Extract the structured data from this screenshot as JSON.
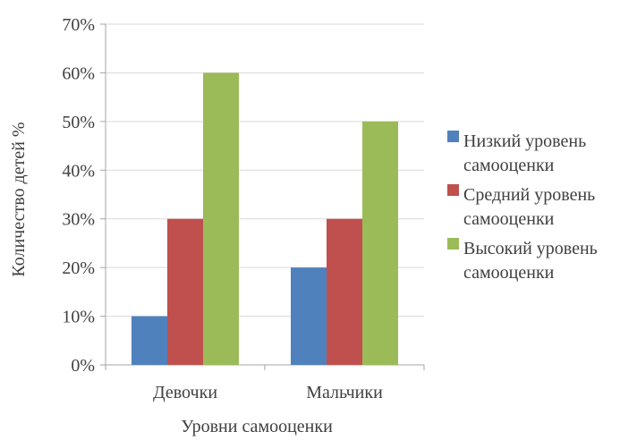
{
  "chart_data": {
    "type": "bar",
    "title": "",
    "xlabel": "Уровни самооценки",
    "ylabel": "Количество детей %",
    "categories": [
      "Девочки",
      "Мальчики"
    ],
    "y_ticks": [
      "0%",
      "10%",
      "20%",
      "30%",
      "40%",
      "50%",
      "60%",
      "70%"
    ],
    "ylim": [
      0,
      70
    ],
    "y_unit": "%",
    "grid": true,
    "legend_position": "right",
    "series": [
      {
        "name": "Низкий уровень самооценки",
        "name_lines": [
          "Низкий уровень",
          "самооценки"
        ],
        "color": "#4F81BD",
        "values": [
          10,
          20
        ]
      },
      {
        "name": "Средний уровень самооценки",
        "name_lines": [
          "Средний уровень",
          "самооценки"
        ],
        "color": "#C0504D",
        "values": [
          30,
          30
        ]
      },
      {
        "name": "Высокий уровень самооценки",
        "name_lines": [
          "Высокий уровень",
          "самооценки"
        ],
        "color": "#9BBB59",
        "values": [
          60,
          50
        ]
      }
    ]
  }
}
